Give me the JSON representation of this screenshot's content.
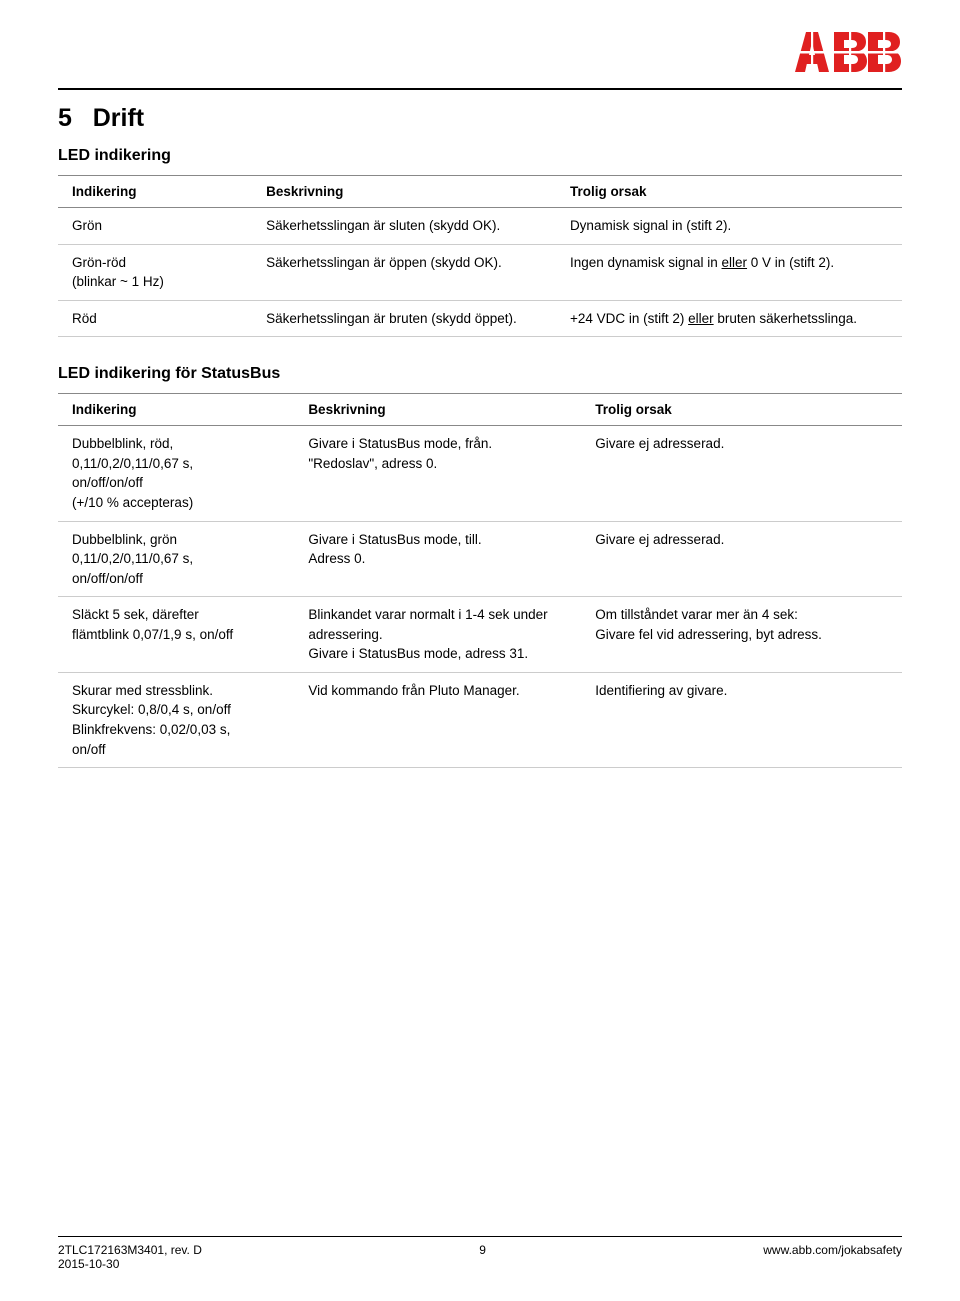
{
  "logo": {
    "color": "#e02020"
  },
  "section": {
    "number": "5",
    "title": "Drift"
  },
  "table1": {
    "heading": "LED indikering",
    "columns": [
      "Indikering",
      "Beskrivning",
      "Trolig orsak"
    ],
    "rows": [
      {
        "c0": "Grön",
        "c1": "Säkerhetsslingan är sluten (skydd OK).",
        "c2": "Dynamisk signal in (stift 2)."
      },
      {
        "c0": "Grön-röd\n(blinkar ~ 1 Hz)",
        "c1": "Säkerhetsslingan är öppen (skydd OK).",
        "c2_pre": "Ingen dynamisk signal in ",
        "c2_u": "eller",
        "c2_post": " 0 V in (stift 2)."
      },
      {
        "c0": "Röd",
        "c1": "Säkerhetsslingan är bruten (skydd öppet).",
        "c2_pre": "+24 VDC in (stift 2) ",
        "c2_u": "eller",
        "c2_post": " bruten säkerhetsslinga."
      }
    ]
  },
  "table2": {
    "heading": "LED indikering för StatusBus",
    "columns": [
      "Indikering",
      "Beskrivning",
      "Trolig orsak"
    ],
    "rows": [
      {
        "c0": "Dubbelblink, röd,\n0,11/0,2/0,11/0,67 s,\non/off/on/off\n(+/10 % accepteras)",
        "c1": "Givare i StatusBus mode, från.\n\"Redoslav\", adress 0.",
        "c2": "Givare ej adresserad."
      },
      {
        "c0": "Dubbelblink, grön\n0,11/0,2/0,11/0,67 s,\non/off/on/off",
        "c1": "Givare i StatusBus mode, till.\nAdress 0.",
        "c2": "Givare ej adresserad."
      },
      {
        "c0": "Släckt 5 sek, därefter\nflämtblink 0,07/1,9 s, on/off",
        "c1": "Blinkandet varar normalt i 1-4 sek under adressering.\nGivare i StatusBus mode, adress 31.",
        "c2": "Om tillståndet varar mer än 4 sek:\nGivare fel vid adressering, byt adress."
      },
      {
        "c0": "Skurar med stressblink.\nSkurcykel: 0,8/0,4 s, on/off\nBlinkfrekvens: 0,02/0,03 s,\non/off",
        "c1": "Vid kommando från Pluto Manager.",
        "c2": "Identifiering av givare."
      }
    ]
  },
  "footer": {
    "left1": "2TLC172163M3401, rev. D",
    "left2": "2015-10-30",
    "page": "9",
    "right": "www.abb.com/jokabsafety"
  }
}
